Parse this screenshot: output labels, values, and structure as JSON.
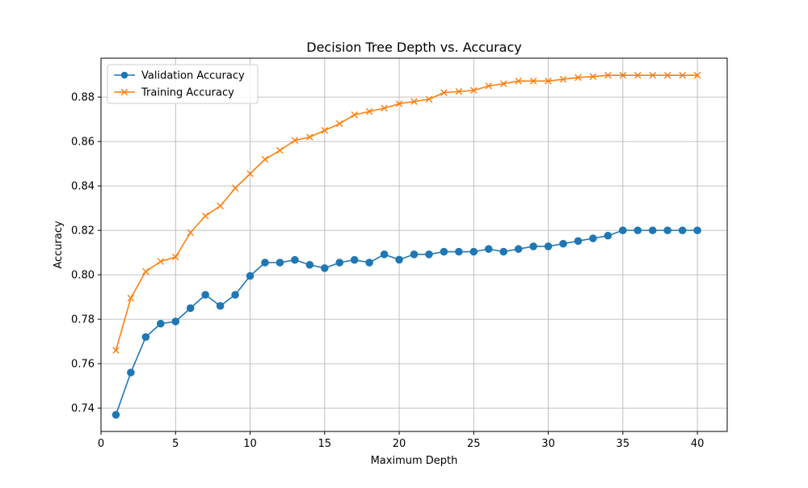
{
  "chart_data": {
    "type": "line",
    "title": "Decision Tree Depth vs. Accuracy",
    "xlabel": "Maximum Depth",
    "ylabel": "Accuracy",
    "xlim": [
      0,
      42
    ],
    "ylim": [
      0.7295,
      0.8975
    ],
    "xticks": [
      0,
      5,
      10,
      15,
      20,
      25,
      30,
      35,
      40
    ],
    "yticks": [
      0.74,
      0.76,
      0.78,
      0.8,
      0.82,
      0.84,
      0.86,
      0.88
    ],
    "ytick_labels": [
      "0.74",
      "0.76",
      "0.78",
      "0.80",
      "0.82",
      "0.84",
      "0.86",
      "0.88"
    ],
    "grid": true,
    "legend_position": "top-left",
    "x": [
      1,
      2,
      3,
      4,
      5,
      6,
      7,
      8,
      9,
      10,
      11,
      12,
      13,
      14,
      15,
      16,
      17,
      18,
      19,
      20,
      21,
      22,
      23,
      24,
      25,
      26,
      27,
      28,
      29,
      30,
      31,
      32,
      33,
      34,
      35,
      36,
      37,
      38,
      39,
      40
    ],
    "series": [
      {
        "name": "Validation Accuracy",
        "color": "#1f77b4",
        "marker": "circle",
        "values": [
          0.737,
          0.756,
          0.772,
          0.778,
          0.779,
          0.785,
          0.791,
          0.786,
          0.791,
          0.7995,
          0.8055,
          0.8055,
          0.8067,
          0.8045,
          0.803,
          0.8055,
          0.8067,
          0.8055,
          0.8092,
          0.8068,
          0.8092,
          0.8092,
          0.8104,
          0.8104,
          0.8104,
          0.8116,
          0.8104,
          0.8116,
          0.8128,
          0.8128,
          0.814,
          0.8152,
          0.8164,
          0.8176,
          0.82,
          0.82,
          0.82,
          0.82,
          0.82,
          0.82
        ]
      },
      {
        "name": "Training Accuracy",
        "color": "#ff7f0e",
        "marker": "x",
        "values": [
          0.766,
          0.7895,
          0.8015,
          0.806,
          0.808,
          0.819,
          0.8265,
          0.831,
          0.839,
          0.8455,
          0.852,
          0.856,
          0.8605,
          0.862,
          0.865,
          0.868,
          0.872,
          0.8735,
          0.875,
          0.877,
          0.878,
          0.879,
          0.882,
          0.8825,
          0.883,
          0.885,
          0.886,
          0.8872,
          0.8872,
          0.8872,
          0.888,
          0.8888,
          0.8892,
          0.8898,
          0.8898,
          0.8898,
          0.8898,
          0.8898,
          0.8898,
          0.8898
        ]
      }
    ]
  }
}
